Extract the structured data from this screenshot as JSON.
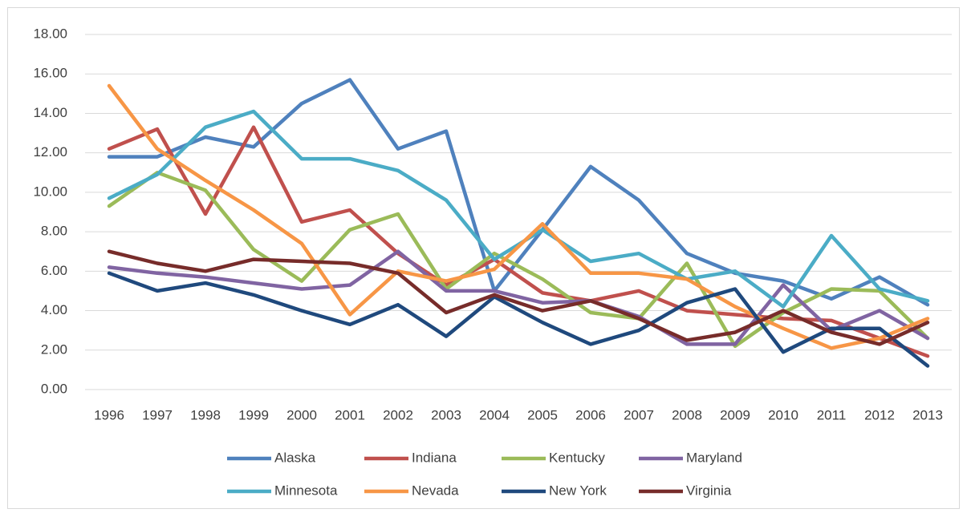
{
  "chart_data": {
    "type": "line",
    "categories": [
      "1996",
      "1997",
      "1998",
      "1999",
      "2000",
      "2001",
      "2002",
      "2003",
      "2004",
      "2005",
      "2006",
      "2007",
      "2008",
      "2009",
      "2010",
      "2011",
      "2012",
      "2013"
    ],
    "series": [
      {
        "name": "Alaska",
        "color": "#4f81bd",
        "values": [
          11.8,
          11.8,
          12.8,
          12.3,
          14.5,
          15.7,
          12.2,
          13.1,
          5.0,
          8.1,
          11.3,
          9.6,
          6.9,
          5.9,
          5.5,
          4.6,
          5.7,
          4.3
        ]
      },
      {
        "name": "Indiana",
        "color": "#c0504d",
        "values": [
          12.2,
          13.2,
          8.9,
          13.3,
          8.5,
          9.1,
          6.9,
          5.3,
          6.6,
          4.9,
          4.5,
          5.0,
          4.0,
          3.8,
          3.6,
          3.5,
          2.6,
          1.7
        ]
      },
      {
        "name": "Kentucky",
        "color": "#9bbb59",
        "values": [
          9.3,
          11.0,
          10.1,
          7.1,
          5.5,
          8.1,
          8.9,
          5.1,
          6.9,
          5.6,
          3.9,
          3.6,
          6.4,
          2.2,
          3.9,
          5.1,
          5.0,
          2.6
        ]
      },
      {
        "name": "Maryland",
        "color": "#8064a2",
        "values": [
          6.2,
          5.9,
          5.7,
          5.4,
          5.1,
          5.3,
          7.0,
          5.0,
          5.0,
          4.4,
          4.5,
          3.7,
          2.3,
          2.3,
          5.3,
          3.0,
          4.0,
          2.6
        ]
      },
      {
        "name": "Minnesota",
        "color": "#4bacc6",
        "values": [
          9.7,
          10.9,
          13.3,
          14.1,
          11.7,
          11.7,
          11.1,
          9.6,
          6.6,
          8.1,
          6.5,
          6.9,
          5.6,
          6.0,
          4.2,
          7.8,
          5.1,
          4.5
        ]
      },
      {
        "name": "Nevada",
        "color": "#f79646",
        "values": [
          15.4,
          12.2,
          10.6,
          9.1,
          7.4,
          3.8,
          6.0,
          5.5,
          6.1,
          8.4,
          5.9,
          5.9,
          5.6,
          4.2,
          3.1,
          2.1,
          2.6,
          3.6
        ]
      },
      {
        "name": "New York",
        "color": "#1f497d",
        "values": [
          5.9,
          5.0,
          5.4,
          4.8,
          4.0,
          3.3,
          4.3,
          2.7,
          4.7,
          3.4,
          2.3,
          3.0,
          4.4,
          5.1,
          1.9,
          3.1,
          3.1,
          1.2
        ]
      },
      {
        "name": "Virginia",
        "color": "#772c2a",
        "values": [
          7.0,
          6.4,
          6.0,
          6.6,
          6.5,
          6.4,
          5.9,
          3.9,
          4.8,
          4.0,
          4.5,
          3.6,
          2.5,
          2.9,
          4.0,
          2.9,
          2.3,
          3.4
        ]
      }
    ],
    "ylim": [
      0,
      18
    ],
    "yticks": [
      {
        "value": 0,
        "label": "0.00"
      },
      {
        "value": 2,
        "label": "2.00"
      },
      {
        "value": 4,
        "label": "4.00"
      },
      {
        "value": 6,
        "label": "6.00"
      },
      {
        "value": 8,
        "label": "8.00"
      },
      {
        "value": 10,
        "label": "10.00"
      },
      {
        "value": 12,
        "label": "12.00"
      },
      {
        "value": 14,
        "label": "14.00"
      },
      {
        "value": 16,
        "label": "16.00"
      },
      {
        "value": 18,
        "label": "18.00"
      }
    ],
    "grid": true,
    "legend": "bottom"
  }
}
